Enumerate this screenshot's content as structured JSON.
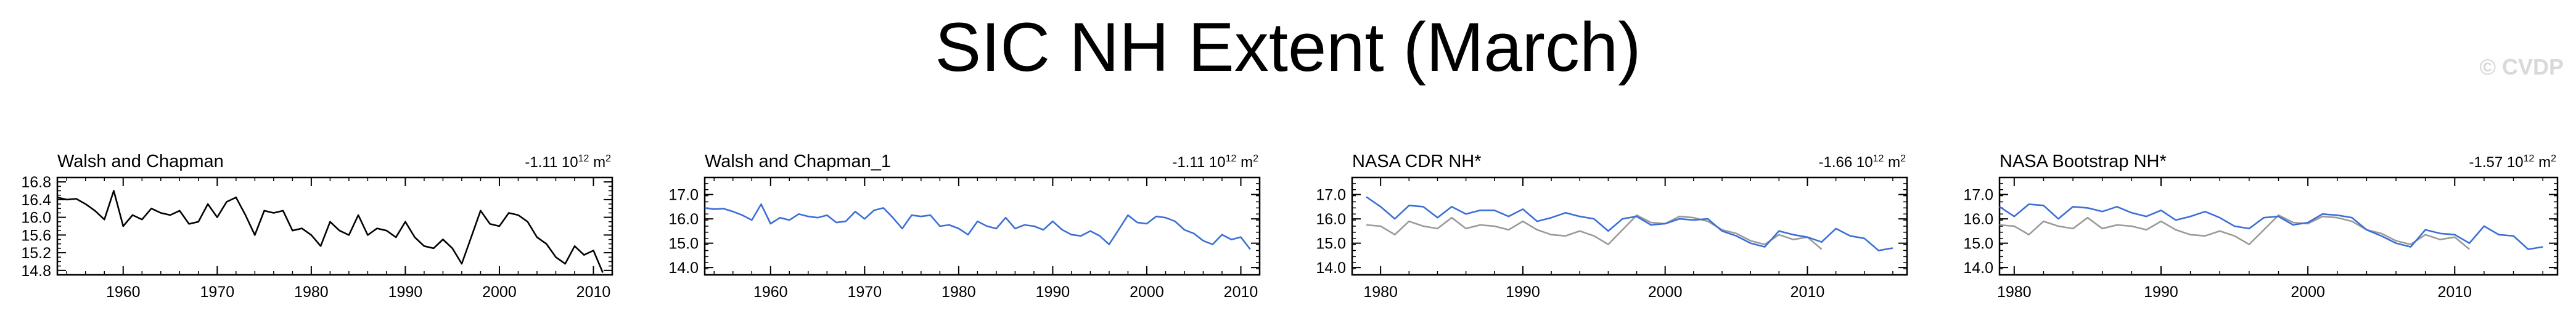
{
  "title": "SIC NH Extent (March)",
  "watermark": "© CVDP",
  "colors": {
    "obs_line": "#000000",
    "model_line": "#3b6fd6",
    "ref_line": "#9a9a9a"
  },
  "chart_data": [
    {
      "type": "line",
      "title": "Walsh and Chapman",
      "trend": "-1.11",
      "trend_units": "10",
      "trend_exp": "12",
      "trend_tail": " m",
      "trend_sup2": "2",
      "xlabel": "",
      "ylabel": "",
      "xlim": [
        1953,
        2012
      ],
      "ylim": [
        14.7,
        16.9
      ],
      "xticks": [
        1960,
        1970,
        1980,
        1990,
        2000,
        2010
      ],
      "yticks": [
        14.8,
        15.2,
        15.6,
        16.0,
        16.4,
        16.8
      ],
      "ytick_labels": [
        "14.8",
        "15.2",
        "15.6",
        "16.0",
        "16.4",
        "16.8"
      ],
      "series": [
        {
          "name": "Walsh and Chapman",
          "color": "#000000",
          "x": [
            1953,
            1954,
            1955,
            1956,
            1957,
            1958,
            1959,
            1960,
            1961,
            1962,
            1963,
            1964,
            1965,
            1966,
            1967,
            1968,
            1969,
            1970,
            1971,
            1972,
            1973,
            1974,
            1975,
            1976,
            1977,
            1978,
            1979,
            1980,
            1981,
            1982,
            1983,
            1984,
            1985,
            1986,
            1987,
            1988,
            1989,
            1990,
            1991,
            1992,
            1993,
            1994,
            1995,
            1996,
            1997,
            1998,
            1999,
            2000,
            2001,
            2002,
            2003,
            2004,
            2005,
            2006,
            2007,
            2008,
            2009,
            2010,
            2011
          ],
          "values": [
            16.45,
            16.4,
            16.42,
            16.3,
            16.15,
            15.95,
            16.6,
            15.8,
            16.05,
            15.95,
            16.2,
            16.1,
            16.05,
            16.15,
            15.85,
            15.9,
            16.3,
            16.0,
            16.35,
            16.45,
            16.05,
            15.6,
            16.15,
            16.1,
            16.15,
            15.7,
            15.75,
            15.6,
            15.35,
            15.9,
            15.7,
            15.6,
            16.05,
            15.6,
            15.75,
            15.7,
            15.55,
            15.9,
            15.55,
            15.35,
            15.3,
            15.5,
            15.3,
            14.95,
            15.55,
            16.15,
            15.85,
            15.8,
            16.1,
            16.05,
            15.9,
            15.55,
            15.4,
            15.1,
            14.95,
            15.35,
            15.15,
            15.25,
            14.75
          ]
        }
      ]
    },
    {
      "type": "line",
      "title": "Walsh and Chapman_1",
      "trend": "-1.11",
      "trend_units": "10",
      "trend_exp": "12",
      "trend_tail": " m",
      "trend_sup2": "2",
      "xlabel": "",
      "ylabel": "",
      "xlim": [
        1953,
        2012
      ],
      "ylim": [
        13.7,
        17.7
      ],
      "xticks": [
        1960,
        1970,
        1980,
        1990,
        2000,
        2010
      ],
      "yticks": [
        14.0,
        15.0,
        16.0,
        17.0
      ],
      "ytick_labels": [
        "14.0",
        "15.0",
        "16.0",
        "17.0"
      ],
      "series": [
        {
          "name": "Walsh and Chapman_1",
          "color": "#3b6fd6",
          "x": [
            1953,
            1954,
            1955,
            1956,
            1957,
            1958,
            1959,
            1960,
            1961,
            1962,
            1963,
            1964,
            1965,
            1966,
            1967,
            1968,
            1969,
            1970,
            1971,
            1972,
            1973,
            1974,
            1975,
            1976,
            1977,
            1978,
            1979,
            1980,
            1981,
            1982,
            1983,
            1984,
            1985,
            1986,
            1987,
            1988,
            1989,
            1990,
            1991,
            1992,
            1993,
            1994,
            1995,
            1996,
            1997,
            1998,
            1999,
            2000,
            2001,
            2002,
            2003,
            2004,
            2005,
            2006,
            2007,
            2008,
            2009,
            2010,
            2011
          ],
          "values": [
            16.45,
            16.4,
            16.42,
            16.3,
            16.15,
            15.95,
            16.6,
            15.8,
            16.05,
            15.95,
            16.2,
            16.1,
            16.05,
            16.15,
            15.85,
            15.9,
            16.3,
            16.0,
            16.35,
            16.45,
            16.05,
            15.6,
            16.15,
            16.1,
            16.15,
            15.7,
            15.75,
            15.6,
            15.35,
            15.9,
            15.7,
            15.6,
            16.05,
            15.6,
            15.75,
            15.7,
            15.55,
            15.9,
            15.55,
            15.35,
            15.3,
            15.5,
            15.3,
            14.95,
            15.55,
            16.15,
            15.85,
            15.8,
            16.1,
            16.05,
            15.9,
            15.55,
            15.4,
            15.1,
            14.95,
            15.35,
            15.15,
            15.25,
            14.75
          ]
        }
      ]
    },
    {
      "type": "line",
      "title": "NASA CDR NH*",
      "trend": "-1.66",
      "trend_units": "10",
      "trend_exp": "12",
      "trend_tail": " m",
      "trend_sup2": "2",
      "xlabel": "",
      "ylabel": "",
      "xlim": [
        1978,
        2017
      ],
      "ylim": [
        13.7,
        17.7
      ],
      "xticks": [
        1980,
        1990,
        2000,
        2010
      ],
      "yticks": [
        14.0,
        15.0,
        16.0,
        17.0
      ],
      "ytick_labels": [
        "14.0",
        "15.0",
        "16.0",
        "17.0"
      ],
      "series": [
        {
          "name": "NASA CDR NH*",
          "color": "#3b6fd6",
          "x": [
            1979,
            1980,
            1981,
            1982,
            1983,
            1984,
            1985,
            1986,
            1987,
            1988,
            1989,
            1990,
            1991,
            1992,
            1993,
            1994,
            1995,
            1996,
            1997,
            1998,
            1999,
            2000,
            2001,
            2002,
            2003,
            2004,
            2005,
            2006,
            2007,
            2008,
            2009,
            2010,
            2011,
            2012,
            2013,
            2014,
            2015,
            2016
          ],
          "values": [
            16.9,
            16.5,
            16.0,
            16.55,
            16.5,
            16.05,
            16.5,
            16.2,
            16.35,
            16.35,
            16.1,
            16.4,
            15.9,
            16.05,
            16.25,
            16.1,
            16.0,
            15.5,
            16.0,
            16.1,
            15.75,
            15.8,
            16.0,
            15.95,
            16.0,
            15.5,
            15.3,
            15.0,
            14.85,
            15.5,
            15.35,
            15.25,
            15.05,
            15.6,
            15.3,
            15.2,
            14.7,
            14.8
          ]
        },
        {
          "name": "Reference",
          "color": "#9a9a9a",
          "x": [
            1979,
            1980,
            1981,
            1982,
            1983,
            1984,
            1985,
            1986,
            1987,
            1988,
            1989,
            1990,
            1991,
            1992,
            1993,
            1994,
            1995,
            1996,
            1997,
            1998,
            1999,
            2000,
            2001,
            2002,
            2003,
            2004,
            2005,
            2006,
            2007,
            2008,
            2009,
            2010,
            2011
          ],
          "values": [
            15.75,
            15.7,
            15.35,
            15.9,
            15.7,
            15.6,
            16.05,
            15.6,
            15.75,
            15.7,
            15.55,
            15.9,
            15.55,
            15.35,
            15.3,
            15.5,
            15.3,
            14.95,
            15.55,
            16.15,
            15.85,
            15.8,
            16.1,
            16.05,
            15.9,
            15.55,
            15.4,
            15.1,
            14.95,
            15.35,
            15.15,
            15.25,
            14.75
          ]
        }
      ]
    },
    {
      "type": "line",
      "title": "NASA Bootstrap NH*",
      "trend": "-1.57",
      "trend_units": "10",
      "trend_exp": "12",
      "trend_tail": " m",
      "trend_sup2": "2",
      "xlabel": "",
      "ylabel": "",
      "xlim": [
        1979,
        2017
      ],
      "ylim": [
        13.7,
        17.7
      ],
      "xticks": [
        1980,
        1990,
        2000,
        2010
      ],
      "yticks": [
        14.0,
        15.0,
        16.0,
        17.0
      ],
      "ytick_labels": [
        "14.0",
        "15.0",
        "16.0",
        "17.0"
      ],
      "series": [
        {
          "name": "NASA Bootstrap NH*",
          "color": "#3b6fd6",
          "x": [
            1979,
            1980,
            1981,
            1982,
            1983,
            1984,
            1985,
            1986,
            1987,
            1988,
            1989,
            1990,
            1991,
            1992,
            1993,
            1994,
            1995,
            1996,
            1997,
            1998,
            1999,
            2000,
            2001,
            2002,
            2003,
            2004,
            2005,
            2006,
            2007,
            2008,
            2009,
            2010,
            2011,
            2012,
            2013,
            2014,
            2015,
            2016
          ],
          "values": [
            16.5,
            16.1,
            16.6,
            16.55,
            16.0,
            16.5,
            16.45,
            16.3,
            16.5,
            16.25,
            16.1,
            16.35,
            15.95,
            16.1,
            16.3,
            16.05,
            15.7,
            15.6,
            16.05,
            16.1,
            15.75,
            15.85,
            16.2,
            16.15,
            16.05,
            15.55,
            15.3,
            15.0,
            14.85,
            15.55,
            15.4,
            15.35,
            15.0,
            15.7,
            15.35,
            15.3,
            14.75,
            14.85
          ]
        },
        {
          "name": "Reference",
          "color": "#9a9a9a",
          "x": [
            1979,
            1980,
            1981,
            1982,
            1983,
            1984,
            1985,
            1986,
            1987,
            1988,
            1989,
            1990,
            1991,
            1992,
            1993,
            1994,
            1995,
            1996,
            1997,
            1998,
            1999,
            2000,
            2001,
            2002,
            2003,
            2004,
            2005,
            2006,
            2007,
            2008,
            2009,
            2010,
            2011
          ],
          "values": [
            15.75,
            15.7,
            15.35,
            15.9,
            15.7,
            15.6,
            16.05,
            15.6,
            15.75,
            15.7,
            15.55,
            15.9,
            15.55,
            15.35,
            15.3,
            15.5,
            15.3,
            14.95,
            15.55,
            16.15,
            15.85,
            15.8,
            16.1,
            16.05,
            15.9,
            15.55,
            15.4,
            15.1,
            14.95,
            15.35,
            15.15,
            15.25,
            14.75
          ]
        }
      ]
    }
  ]
}
